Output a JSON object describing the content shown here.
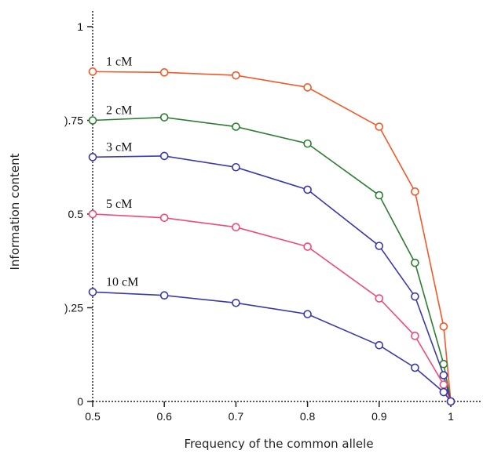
{
  "chart_data": {
    "type": "line",
    "title": "",
    "xlabel": "Frequency of the common allele",
    "ylabel": "Information content",
    "x": [
      0.5,
      0.6,
      0.7,
      0.8,
      0.9,
      0.95,
      0.99,
      1.0
    ],
    "xticks": [
      0.5,
      0.6,
      0.7,
      0.8,
      0.9,
      1
    ],
    "xtick_labels": [
      "0.5",
      "0.6",
      "0.7",
      "0.8",
      "0.9",
      "1"
    ],
    "yticks": [
      0,
      0.25,
      0.5,
      0.75,
      1
    ],
    "ytick_labels": [
      "0",
      ").25",
      "0.5",
      ").75",
      "1"
    ],
    "xlim": [
      0.5,
      1.02
    ],
    "ylim": [
      0,
      1
    ],
    "grid": false,
    "legend": "none",
    "series": [
      {
        "name": "1 cM",
        "color": "#f05a28",
        "values": [
          0.88,
          0.878,
          0.87,
          0.838,
          0.733,
          0.56,
          0.2,
          0.0
        ]
      },
      {
        "name": "2 cM",
        "color": "#2e7d32",
        "values": [
          0.75,
          0.758,
          0.733,
          0.688,
          0.55,
          0.37,
          0.1,
          0.0
        ]
      },
      {
        "name": "3 cM",
        "color": "#3a3aa8",
        "values": [
          0.652,
          0.655,
          0.625,
          0.565,
          0.415,
          0.28,
          0.07,
          0.0
        ]
      },
      {
        "name": "5 cM",
        "color": "#ee4a7a",
        "values": [
          0.5,
          0.49,
          0.465,
          0.413,
          0.275,
          0.175,
          0.045,
          0.0
        ]
      },
      {
        "name": "10 cM",
        "color": "#3a3aa8",
        "values": [
          0.292,
          0.283,
          0.263,
          0.233,
          0.15,
          0.09,
          0.025,
          0.0
        ]
      }
    ]
  }
}
